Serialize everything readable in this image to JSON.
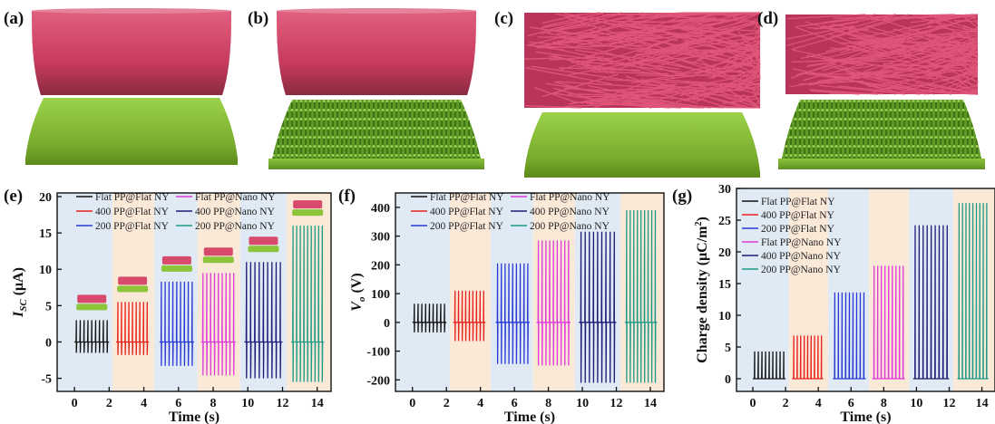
{
  "panel_labels": [
    "(a)",
    "(b)",
    "(c)",
    "(d)",
    "(e)",
    "(f)",
    "(g)"
  ],
  "colors": {
    "top_plate": "#d84a6b",
    "bottom_plate": "#8cc43a",
    "nano_pillars": "#4f8f22",
    "fibers": "#d6486c",
    "seg_bg_blue": "#dfeaf4",
    "seg_bg_orange": "#fbe9d8"
  },
  "chart_data": [
    {
      "id": "e",
      "type": "line",
      "xlabel": "Time (s)",
      "ylabel_main": "I",
      "ylabel_sub": "SC",
      "ylabel_unit": " (μA)",
      "xlim": [
        -1,
        14.8
      ],
      "ylim": [
        -6.8,
        20.5
      ],
      "xticks": [
        0,
        2,
        4,
        6,
        8,
        10,
        12,
        14
      ],
      "yticks": [
        -5,
        0,
        5,
        10,
        15,
        20
      ],
      "legend_cols": 2,
      "series": [
        {
          "name": "Flat PP@Flat NY",
          "color": "#111111",
          "x_range": [
            0,
            2
          ],
          "high": 3.0,
          "low": -1.5
        },
        {
          "name": "400 PP@Flat NY",
          "color": "#e8211d",
          "x_range": [
            2.4,
            4.3
          ],
          "high": 5.5,
          "low": -1.8
        },
        {
          "name": "200 PP@Flat NY",
          "color": "#2a39d6",
          "x_range": [
            4.9,
            6.9
          ],
          "high": 8.3,
          "low": -3.3
        },
        {
          "name": "Flat PP@Nano NY",
          "color": "#e03ad8",
          "x_range": [
            7.3,
            9.3
          ],
          "high": 9.5,
          "low": -4.6
        },
        {
          "name": "400 PP@Nano NY",
          "color": "#1f1a78",
          "x_range": [
            9.8,
            12.0
          ],
          "high": 11.0,
          "low": -5.0
        },
        {
          "name": "200 PP@Nano NY",
          "color": "#1d9b86",
          "x_range": [
            12.5,
            14.4
          ],
          "high": 16.0,
          "low": -5.5
        }
      ]
    },
    {
      "id": "f",
      "type": "line",
      "xlabel": "Time (s)",
      "ylabel_main": "V",
      "ylabel_sub": "o",
      "ylabel_unit": " (V)",
      "xlim": [
        -1,
        14.8
      ],
      "ylim": [
        -240,
        450
      ],
      "xticks": [
        0,
        2,
        4,
        6,
        8,
        10,
        12,
        14
      ],
      "yticks": [
        -200,
        -100,
        0,
        100,
        200,
        300,
        400
      ],
      "legend_cols": 2,
      "series": [
        {
          "name": "Flat PP@Flat NY",
          "color": "#111111",
          "x_range": [
            0,
            2
          ],
          "high": 65,
          "low": -35
        },
        {
          "name": "400 PP@Flat NY",
          "color": "#e8211d",
          "x_range": [
            2.4,
            4.3
          ],
          "high": 110,
          "low": -65
        },
        {
          "name": "200 PP@Flat NY",
          "color": "#2a39d6",
          "x_range": [
            4.9,
            6.9
          ],
          "high": 205,
          "low": -145
        },
        {
          "name": "Flat PP@Nano NY",
          "color": "#e03ad8",
          "x_range": [
            7.3,
            9.3
          ],
          "high": 285,
          "low": -150
        },
        {
          "name": "400 PP@Nano NY",
          "color": "#1f1a78",
          "x_range": [
            9.8,
            12.0
          ],
          "high": 315,
          "low": -210
        },
        {
          "name": "200 PP@Nano NY",
          "color": "#1d9b86",
          "x_range": [
            12.5,
            14.4
          ],
          "high": 390,
          "low": -210
        }
      ]
    },
    {
      "id": "g",
      "type": "line",
      "xlabel": "Time (s)",
      "ylabel_main": "Charge density",
      "ylabel_unit": " (μC/m",
      "ylabel_sup": "2",
      "ylabel_close": ")",
      "xlim": [
        -1,
        14.8
      ],
      "ylim": [
        -2,
        30
      ],
      "xticks": [
        0,
        2,
        4,
        6,
        8,
        10,
        12,
        14
      ],
      "yticks": [
        0,
        5,
        10,
        15,
        20,
        25,
        30
      ],
      "legend_cols": 1,
      "series": [
        {
          "name": "Flat PP@Flat NY",
          "color": "#111111",
          "x_range": [
            0,
            2
          ],
          "high": 4.3,
          "low": 0
        },
        {
          "name": "400 PP@Flat NY",
          "color": "#e8211d",
          "x_range": [
            2.4,
            4.3
          ],
          "high": 6.8,
          "low": 0
        },
        {
          "name": "200 PP@Flat NY",
          "color": "#2a39d6",
          "x_range": [
            4.9,
            6.9
          ],
          "high": 13.6,
          "low": 0
        },
        {
          "name": "Flat PP@Nano NY",
          "color": "#e03ad8",
          "x_range": [
            7.3,
            9.3
          ],
          "high": 17.8,
          "low": 0
        },
        {
          "name": "400 PP@Nano NY",
          "color": "#1f1a78",
          "x_range": [
            9.8,
            12.0
          ],
          "high": 24.2,
          "low": 0
        },
        {
          "name": "200 PP@Nano NY",
          "color": "#1d9b86",
          "x_range": [
            12.5,
            14.4
          ],
          "high": 27.7,
          "low": 0
        }
      ]
    }
  ]
}
